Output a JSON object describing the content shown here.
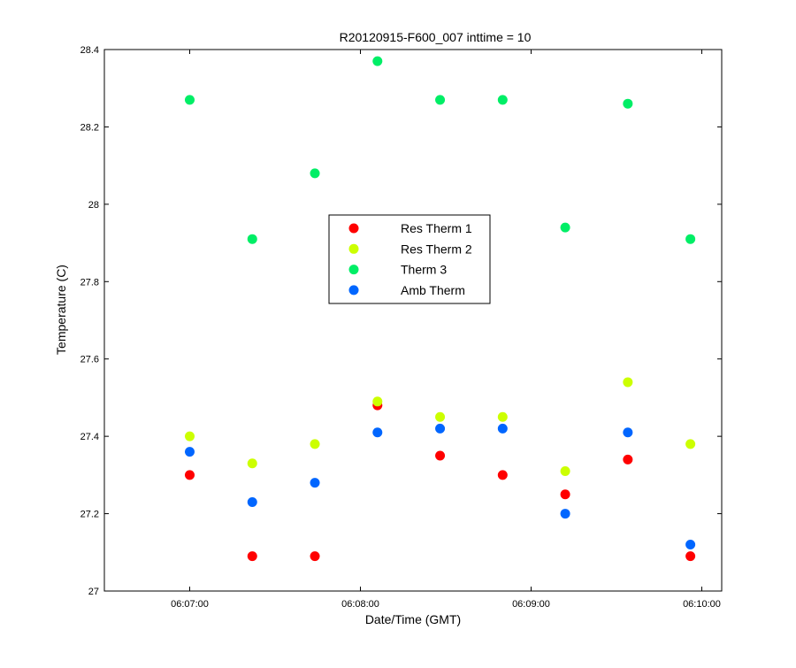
{
  "chart_data": {
    "type": "scatter",
    "title": "R20120915-F600_007 inttime = 10",
    "xlabel": "Date/Time (GMT)",
    "ylabel": "Temperature (C)",
    "xlim": [
      "06:06:30",
      "06:10:07"
    ],
    "ylim": [
      27,
      28.4
    ],
    "x_ticks": [
      "06:07:00",
      "06:08:00",
      "06:09:00",
      "06:10:00"
    ],
    "y_ticks": [
      "27",
      "27.2",
      "27.4",
      "27.6",
      "27.8",
      "28",
      "28.2",
      "28.4"
    ],
    "grid": false,
    "legend_position": "center",
    "x": [
      "06:07:00",
      "06:07:22",
      "06:07:44",
      "06:08:06",
      "06:08:28",
      "06:08:50",
      "06:09:12",
      "06:09:34",
      "06:09:56"
    ],
    "series": [
      {
        "name": "Res Therm 1",
        "color": "#ff0000",
        "values": [
          27.3,
          27.09,
          27.09,
          27.48,
          27.35,
          27.3,
          27.25,
          27.34,
          27.09
        ]
      },
      {
        "name": "Res Therm 2",
        "color": "#ccff00",
        "values": [
          27.4,
          27.33,
          27.38,
          27.49,
          27.45,
          27.45,
          27.31,
          27.54,
          27.38
        ]
      },
      {
        "name": "Therm 3",
        "color": "#00ee66",
        "values": [
          28.27,
          27.91,
          28.08,
          28.37,
          28.27,
          28.27,
          27.94,
          28.26,
          27.91
        ]
      },
      {
        "name": "Amb Therm",
        "color": "#0066ff",
        "values": [
          27.36,
          27.23,
          27.28,
          27.41,
          27.42,
          27.42,
          27.2,
          27.41,
          27.12
        ]
      }
    ]
  }
}
